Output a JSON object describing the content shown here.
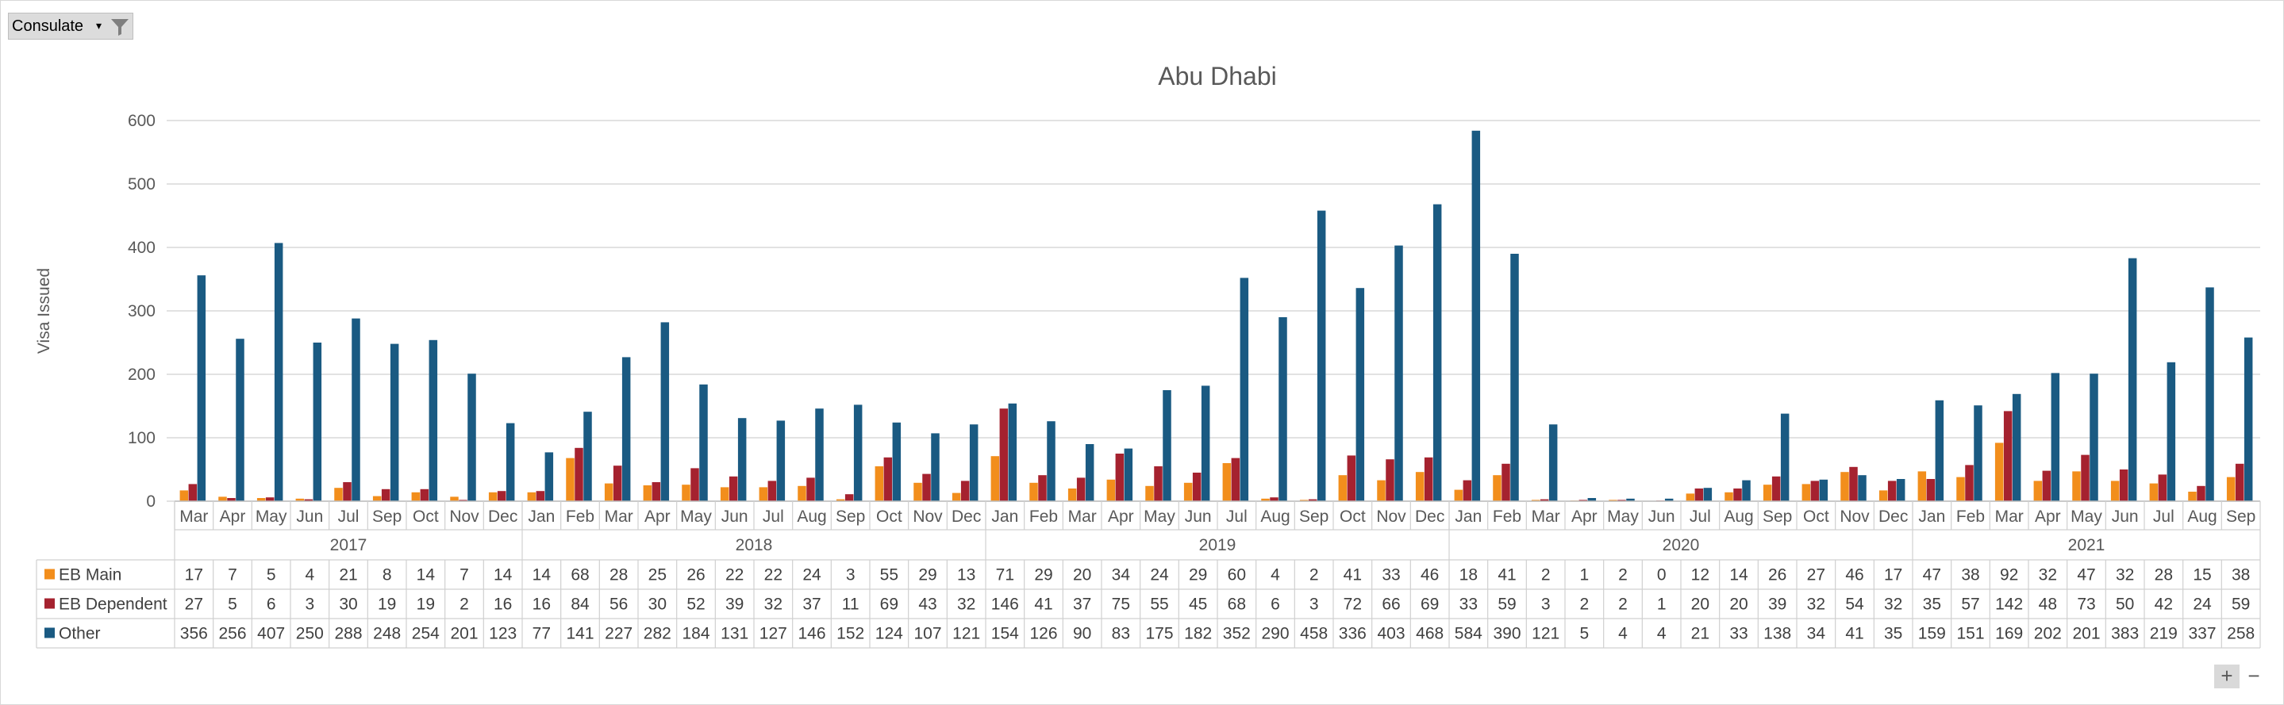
{
  "filter": {
    "label": "Consulate",
    "dropdown_glyph": "▾",
    "icon": "filter-icon"
  },
  "zoom": {
    "in_label": "+",
    "out_label": "−"
  },
  "colors": {
    "EB Main": "#F28E1C",
    "EB Dependent": "#A5222F",
    "Other": "#1A5A82",
    "grid": "#d9d9d9"
  },
  "chart_data": {
    "type": "bar",
    "title": "Abu Dhabi",
    "ylabel": "Visa Issued",
    "ylim": [
      0,
      600
    ],
    "yticks": [
      0,
      100,
      200,
      300,
      400,
      500,
      600
    ],
    "grid": true,
    "legend": "data-table-left",
    "groups": [
      {
        "year": "2017",
        "months": [
          "Mar",
          "Apr",
          "May",
          "Jun",
          "Jul",
          "Sep",
          "Oct",
          "Nov",
          "Dec"
        ]
      },
      {
        "year": "2018",
        "months": [
          "Jan",
          "Feb",
          "Mar",
          "Apr",
          "May",
          "Jun",
          "Jul",
          "Aug",
          "Sep",
          "Oct",
          "Nov",
          "Dec"
        ]
      },
      {
        "year": "2019",
        "months": [
          "Jan",
          "Feb",
          "Mar",
          "Apr",
          "May",
          "Jun",
          "Jul",
          "Aug",
          "Sep",
          "Oct",
          "Nov",
          "Dec"
        ]
      },
      {
        "year": "2020",
        "months": [
          "Jan",
          "Feb",
          "Mar",
          "Apr",
          "May",
          "Jun",
          "Jul",
          "Aug",
          "Sep",
          "Oct",
          "Nov",
          "Dec"
        ]
      },
      {
        "year": "2021",
        "months": [
          "Jan",
          "Feb",
          "Mar",
          "Apr",
          "May",
          "Jun",
          "Jul",
          "Aug",
          "Sep"
        ]
      }
    ],
    "series": [
      {
        "name": "EB Main",
        "values": [
          17,
          7,
          5,
          4,
          21,
          8,
          14,
          7,
          14,
          14,
          68,
          28,
          25,
          26,
          22,
          22,
          24,
          3,
          55,
          29,
          13,
          71,
          29,
          20,
          34,
          24,
          29,
          60,
          4,
          2,
          41,
          33,
          46,
          18,
          41,
          2,
          1,
          2,
          0,
          12,
          14,
          26,
          27,
          46,
          17,
          47,
          38,
          92,
          32,
          47,
          32,
          28,
          15,
          38
        ]
      },
      {
        "name": "EB Dependent",
        "values": [
          27,
          5,
          6,
          3,
          30,
          19,
          19,
          2,
          16,
          16,
          84,
          56,
          30,
          52,
          39,
          32,
          37,
          11,
          69,
          43,
          32,
          146,
          41,
          37,
          75,
          55,
          45,
          68,
          6,
          3,
          72,
          66,
          69,
          33,
          59,
          3,
          2,
          2,
          1,
          20,
          20,
          39,
          32,
          54,
          32,
          35,
          57,
          142,
          48,
          73,
          50,
          42,
          24,
          59
        ]
      },
      {
        "name": "Other",
        "values": [
          356,
          256,
          407,
          250,
          288,
          248,
          254,
          201,
          123,
          77,
          141,
          227,
          282,
          184,
          131,
          127,
          146,
          152,
          124,
          107,
          121,
          154,
          126,
          90,
          83,
          175,
          182,
          352,
          290,
          458,
          336,
          403,
          468,
          584,
          390,
          121,
          5,
          4,
          4,
          21,
          33,
          138,
          34,
          41,
          35,
          159,
          151,
          169,
          202,
          201,
          383,
          219,
          337,
          258
        ]
      }
    ]
  }
}
